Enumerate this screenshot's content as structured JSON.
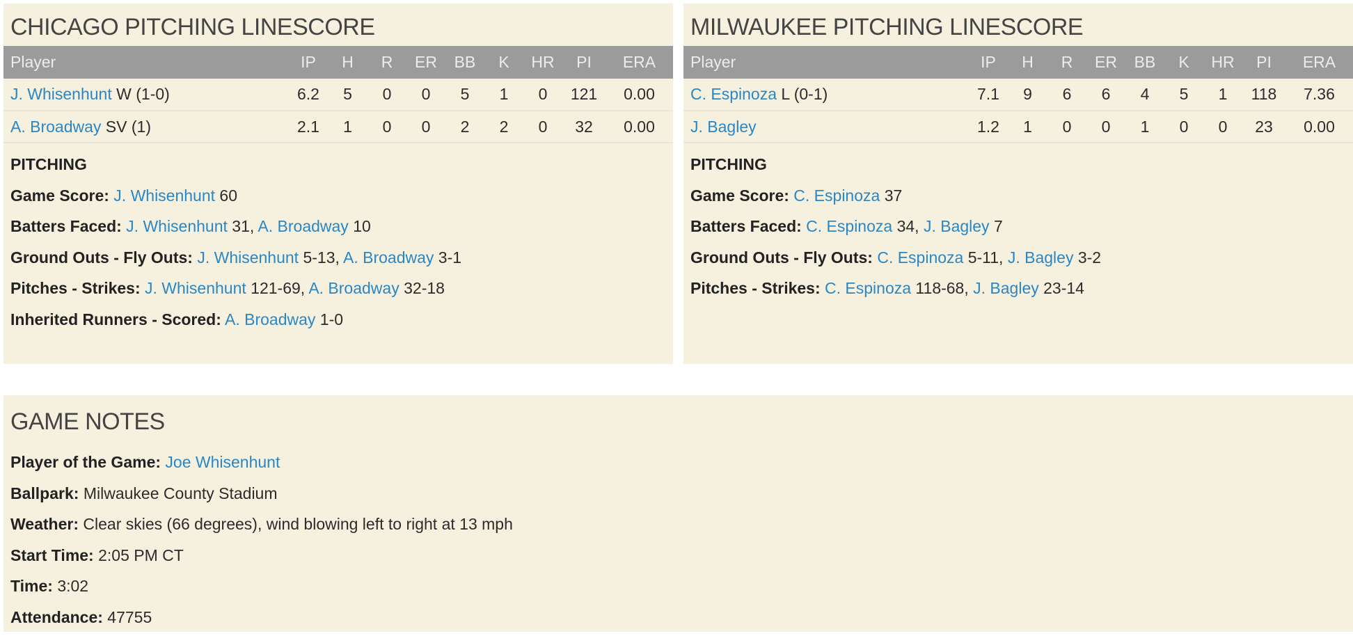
{
  "columns": [
    "Player",
    "IP",
    "H",
    "R",
    "ER",
    "BB",
    "K",
    "HR",
    "PI",
    "ERA"
  ],
  "chicago": {
    "title": "CHICAGO PITCHING LINESCORE",
    "rows": [
      {
        "name": "J. Whisenhunt",
        "note": "W (1-0)",
        "stats": [
          "6.2",
          "5",
          "0",
          "0",
          "5",
          "1",
          "0",
          "121",
          "0.00"
        ]
      },
      {
        "name": "A. Broadway",
        "note": "SV (1)",
        "stats": [
          "2.1",
          "1",
          "0",
          "0",
          "2",
          "2",
          "0",
          "32",
          "0.00"
        ]
      }
    ],
    "section": "PITCHING",
    "details": [
      {
        "label": "Game Score:",
        "parts": [
          {
            "name": "J. Whisenhunt",
            "value": " 60"
          }
        ]
      },
      {
        "label": "Batters Faced:",
        "parts": [
          {
            "name": "J. Whisenhunt",
            "value": " 31, "
          },
          {
            "name": "A. Broadway",
            "value": " 10"
          }
        ]
      },
      {
        "label": "Ground Outs - Fly Outs:",
        "parts": [
          {
            "name": "J. Whisenhunt",
            "value": " 5-13, "
          },
          {
            "name": "A. Broadway",
            "value": " 3-1"
          }
        ]
      },
      {
        "label": "Pitches - Strikes:",
        "parts": [
          {
            "name": "J. Whisenhunt",
            "value": " 121-69, "
          },
          {
            "name": "A. Broadway",
            "value": " 32-18"
          }
        ]
      },
      {
        "label": "Inherited Runners - Scored:",
        "parts": [
          {
            "name": "A. Broadway",
            "value": " 1-0"
          }
        ]
      }
    ]
  },
  "milwaukee": {
    "title": "MILWAUKEE PITCHING LINESCORE",
    "rows": [
      {
        "name": "C. Espinoza",
        "note": "L (0-1)",
        "stats": [
          "7.1",
          "9",
          "6",
          "6",
          "4",
          "5",
          "1",
          "118",
          "7.36"
        ]
      },
      {
        "name": "J. Bagley",
        "note": "",
        "stats": [
          "1.2",
          "1",
          "0",
          "0",
          "1",
          "0",
          "0",
          "23",
          "0.00"
        ]
      }
    ],
    "section": "PITCHING",
    "details": [
      {
        "label": "Game Score:",
        "parts": [
          {
            "name": "C. Espinoza",
            "value": " 37"
          }
        ]
      },
      {
        "label": "Batters Faced:",
        "parts": [
          {
            "name": "C. Espinoza",
            "value": " 34, "
          },
          {
            "name": "J. Bagley",
            "value": " 7"
          }
        ]
      },
      {
        "label": "Ground Outs - Fly Outs:",
        "parts": [
          {
            "name": "C. Espinoza",
            "value": " 5-11, "
          },
          {
            "name": "J. Bagley",
            "value": " 3-2"
          }
        ]
      },
      {
        "label": "Pitches - Strikes:",
        "parts": [
          {
            "name": "C. Espinoza",
            "value": " 118-68, "
          },
          {
            "name": "J. Bagley",
            "value": " 23-14"
          }
        ]
      }
    ]
  },
  "notes": {
    "title": "GAME NOTES",
    "player_of_game_label": "Player of the Game:",
    "player_of_game": "Joe Whisenhunt",
    "ballpark_label": "Ballpark:",
    "ballpark": "Milwaukee County Stadium",
    "weather_label": "Weather:",
    "weather": "Clear skies (66 degrees), wind blowing left to right at 13 mph",
    "start_time_label": "Start Time:",
    "start_time": "2:05 PM CT",
    "time_label": "Time:",
    "time": "3:02",
    "attendance_label": "Attendance:",
    "attendance": "47755"
  },
  "colors": {
    "panel_bg": "#f6f1de",
    "header_bg": "#9b9b9b",
    "link": "#2a86c5"
  }
}
